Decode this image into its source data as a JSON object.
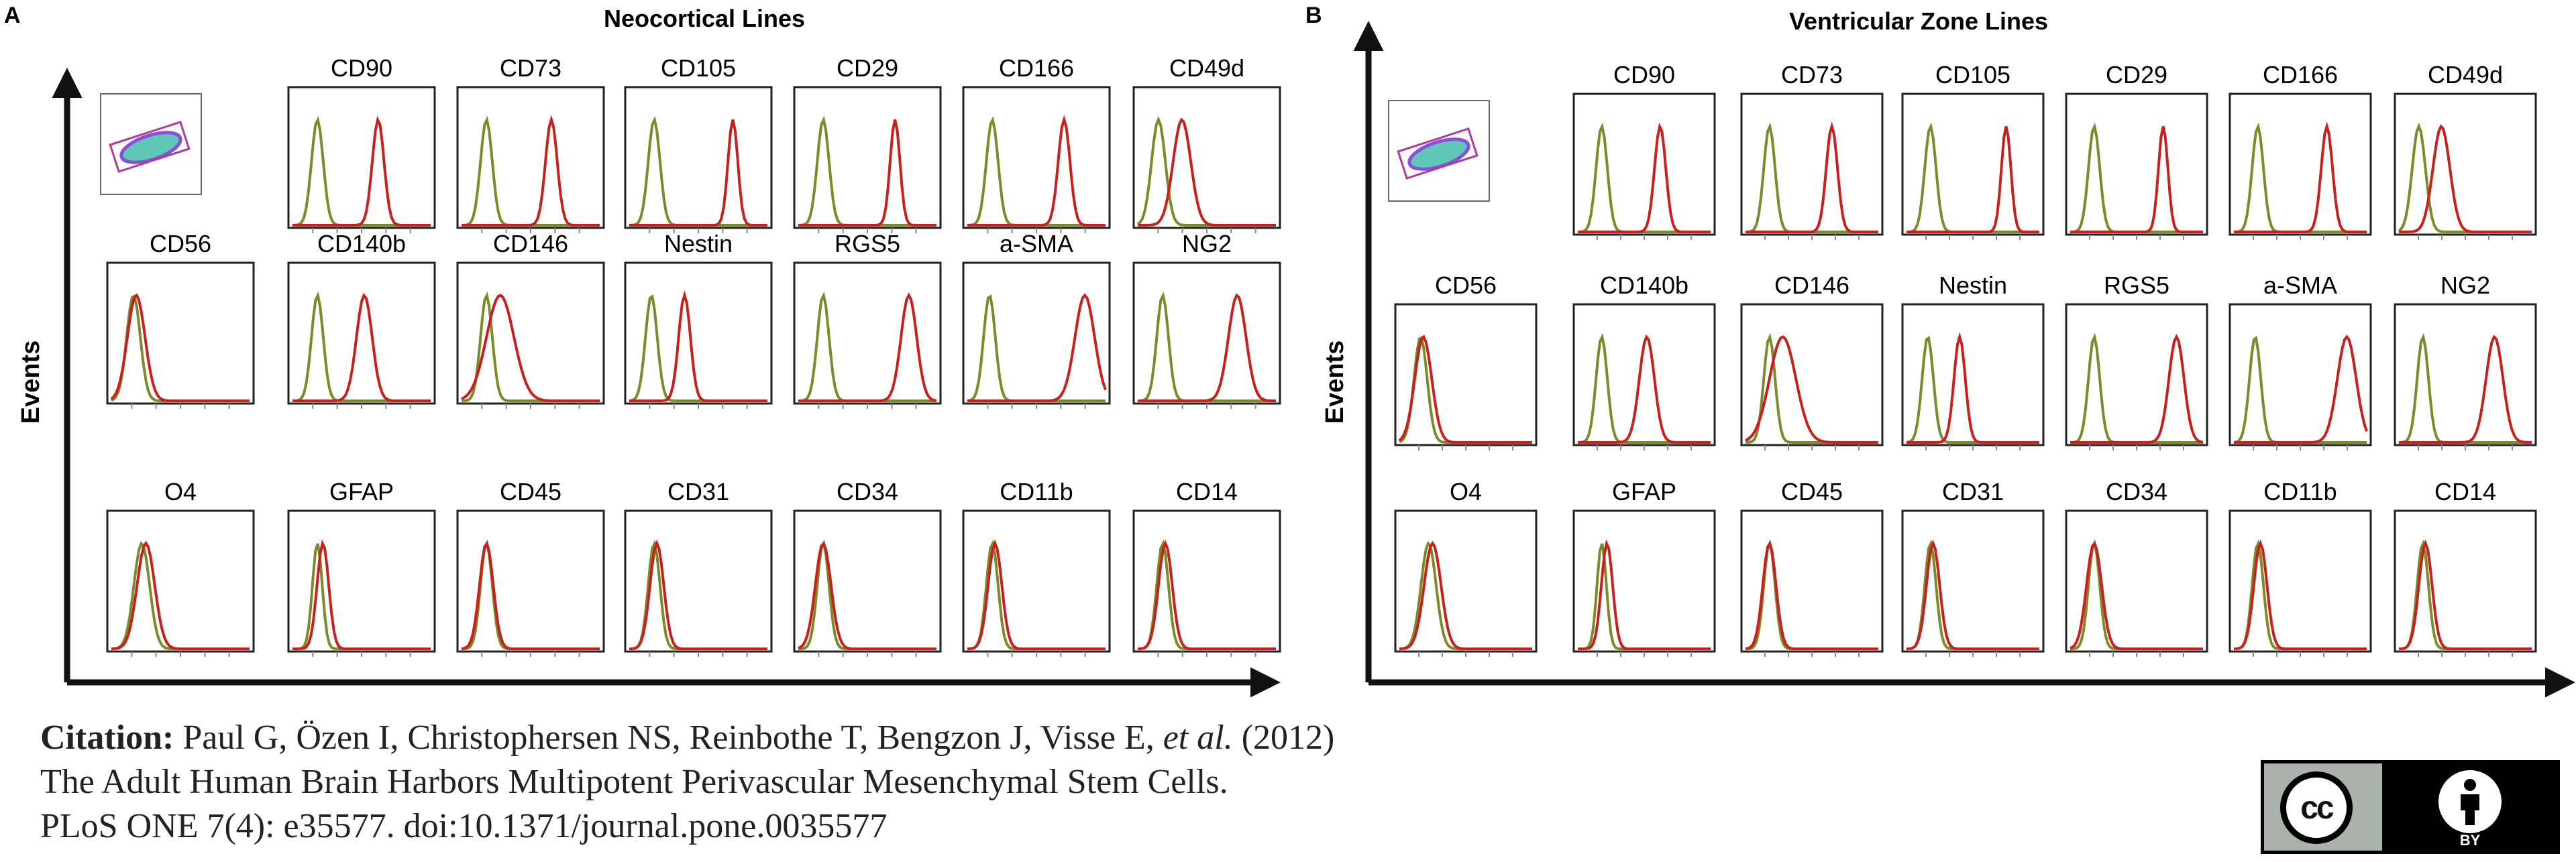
{
  "figure": {
    "panel_a": {
      "letter": "A",
      "title": "Neocortical Lines",
      "rows": [
        [
          "CD90",
          "CD73",
          "CD105",
          "CD29",
          "CD166",
          "CD49d"
        ],
        [
          "CD56",
          "CD140b",
          "CD146",
          "Nestin",
          "RGS5",
          "a-SMA",
          "NG2"
        ],
        [
          "O4",
          "GFAP",
          "CD45",
          "CD31",
          "CD34",
          "CD11b",
          "CD14"
        ]
      ]
    },
    "panel_b": {
      "letter": "B",
      "title": "Ventricular Zone Lines",
      "rows": [
        [
          "CD90",
          "CD73",
          "CD105",
          "CD29",
          "CD166",
          "CD49d"
        ],
        [
          "CD56",
          "CD140b",
          "CD146",
          "Nestin",
          "RGS5",
          "a-SMA",
          "NG2"
        ],
        [
          "O4",
          "GFAP",
          "CD45",
          "CD31",
          "CD34",
          "CD11b",
          "CD14"
        ]
      ]
    },
    "y_axis_label": "Events"
  },
  "chart_data": [
    {
      "type": "histogram-grid",
      "title": "Neocortical Lines",
      "ylabel": "Events",
      "markers": [
        "CD90",
        "CD73",
        "CD105",
        "CD29",
        "CD166",
        "CD49d",
        "CD56",
        "CD140b",
        "CD146",
        "Nestin",
        "RGS5",
        "a-SMA",
        "NG2",
        "O4",
        "GFAP",
        "CD45",
        "CD31",
        "CD34",
        "CD11b",
        "CD14"
      ]
    },
    {
      "type": "histogram-grid",
      "title": "Ventricular Zone Lines",
      "ylabel": "Events",
      "markers": [
        "CD90",
        "CD73",
        "CD105",
        "CD29",
        "CD166",
        "CD49d",
        "CD56",
        "CD140b",
        "CD146",
        "Nestin",
        "RGS5",
        "a-SMA",
        "NG2",
        "O4",
        "GFAP",
        "CD45",
        "CD31",
        "CD34",
        "CD11b",
        "CD14"
      ]
    }
  ],
  "citation": {
    "label": "Citation:",
    "authors": " Paul G, Özen I, Christophersen NS, Reinbothe T, Bengzon J, Visse E, ",
    "et_al": "et al.",
    "year": " (2012)",
    "title": "The Adult Human Brain Harbors Multipotent Perivascular Mesenchymal Stem Cells.",
    "journal": "PLoS ONE 7(4): e35577. doi:10.1371/journal.pone.0035577"
  },
  "license": {
    "cc": "cc",
    "by": "BY"
  },
  "colors": {
    "control": "#7d8a2a",
    "stain": "#c8201c",
    "axis": "#111111",
    "scatter": "#8a4fd6"
  }
}
